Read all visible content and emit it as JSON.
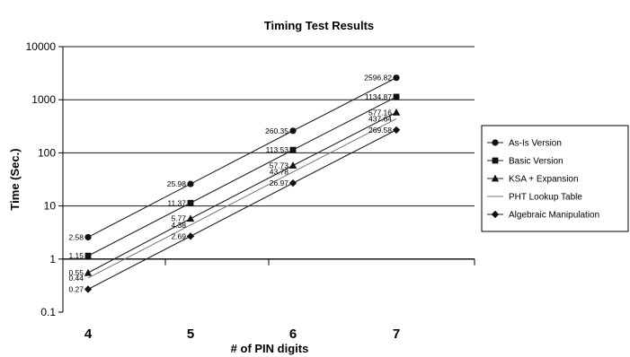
{
  "chart_data": {
    "type": "line",
    "title": "Timing Test Results",
    "xlabel": "# of PIN digits",
    "ylabel": "Time (Sec.)",
    "y_scale": "log",
    "ylim": [
      0.1,
      10000
    ],
    "grid": "horizontal major gridlines",
    "legend_position": "right",
    "categories": [
      "4",
      "5",
      "6",
      "7"
    ],
    "y_ticks": [
      "0.1",
      "1",
      "10",
      "100",
      "1000",
      "10000"
    ],
    "series": [
      {
        "name": "As-Is Version",
        "marker": "circle",
        "values": [
          2.58,
          25.98,
          260.35,
          2596.82
        ],
        "labels": [
          "2.58",
          "25.98",
          "260.35",
          "2596.82"
        ]
      },
      {
        "name": "Basic Version",
        "marker": "square",
        "values": [
          1.15,
          11.37,
          113.53,
          1134.87
        ],
        "labels": [
          "1.15",
          "11.37",
          "113.53",
          "1134.87"
        ]
      },
      {
        "name": "KSA + Expansion",
        "marker": "triangle",
        "values": [
          0.55,
          5.77,
          57.73,
          577.16
        ],
        "labels": [
          "0.55",
          "5.77",
          "57.73",
          "577.16"
        ]
      },
      {
        "name": "PHT Lookup Table",
        "marker": "none",
        "values": [
          0.44,
          4.38,
          43.78,
          437.64
        ],
        "labels": [
          "0.44",
          "4.38",
          "43.78",
          "437.64"
        ]
      },
      {
        "name": "Algebraic Manipulation",
        "marker": "diamond",
        "values": [
          0.27,
          2.69,
          26.97,
          269.58
        ],
        "labels": [
          "0.27",
          "2.69",
          "26.97",
          "269.58"
        ]
      }
    ]
  }
}
